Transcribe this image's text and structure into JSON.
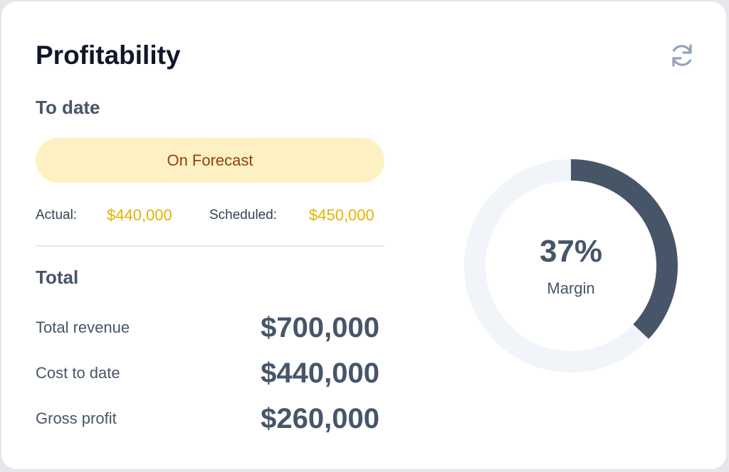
{
  "card": {
    "title": "Profitability",
    "refresh_icon": "refresh-icon"
  },
  "to_date": {
    "heading": "To date",
    "status_badge": "On Forecast",
    "actual_label": "Actual:",
    "actual_value": "$440,000",
    "scheduled_label": "Scheduled:",
    "scheduled_value": "$450,000"
  },
  "total": {
    "heading": "Total",
    "rows": [
      {
        "label": "Total revenue",
        "value": "$700,000"
      },
      {
        "label": "Cost to date",
        "value": "$440,000"
      },
      {
        "label": "Gross profit",
        "value": "$260,000"
      }
    ]
  },
  "margin": {
    "percent_text": "37%",
    "label": "Margin",
    "fraction": 0.37
  },
  "colors": {
    "accent_dark": "#475569",
    "track": "#f1f4f8",
    "badge_bg": "#fdf1c3",
    "badge_text": "#92400e",
    "value_yellow": "#e2b203"
  }
}
